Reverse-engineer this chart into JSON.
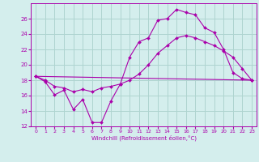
{
  "xlabel": "Windchill (Refroidissement éolien,°C)",
  "background_color": "#d4eeed",
  "grid_color": "#aed4d0",
  "line_color": "#aa00aa",
  "xlim": [
    -0.5,
    23.5
  ],
  "ylim": [
    12,
    28
  ],
  "yticks": [
    12,
    14,
    16,
    18,
    20,
    22,
    24,
    26
  ],
  "xticks": [
    0,
    1,
    2,
    3,
    4,
    5,
    6,
    7,
    8,
    9,
    10,
    11,
    12,
    13,
    14,
    15,
    16,
    17,
    18,
    19,
    20,
    21,
    22,
    23
  ],
  "series": [
    {
      "x": [
        0,
        1,
        2,
        3,
        4,
        5,
        6,
        7,
        8,
        9,
        10,
        11,
        12,
        13,
        14,
        15,
        16,
        17,
        18,
        19,
        20,
        21,
        22,
        23
      ],
      "y": [
        18.5,
        17.8,
        16.1,
        16.7,
        14.2,
        15.5,
        12.5,
        12.5,
        15.3,
        17.5,
        21.0,
        23.0,
        23.5,
        25.8,
        26.0,
        27.2,
        26.8,
        26.5,
        24.8,
        24.2,
        22.0,
        19.0,
        18.2,
        18.0
      ]
    },
    {
      "x": [
        0,
        1,
        2,
        3,
        4,
        5,
        6,
        7,
        8,
        9,
        10,
        11,
        12,
        13,
        14,
        15,
        16,
        17,
        18,
        19,
        20,
        21,
        22,
        23
      ],
      "y": [
        18.5,
        18.0,
        17.2,
        17.0,
        16.5,
        16.8,
        16.5,
        17.0,
        17.2,
        17.5,
        18.0,
        18.8,
        20.0,
        21.5,
        22.5,
        23.5,
        23.8,
        23.5,
        23.0,
        22.5,
        21.8,
        21.0,
        19.5,
        18.0
      ]
    },
    {
      "x": [
        0,
        23
      ],
      "y": [
        18.5,
        18.0
      ]
    }
  ]
}
